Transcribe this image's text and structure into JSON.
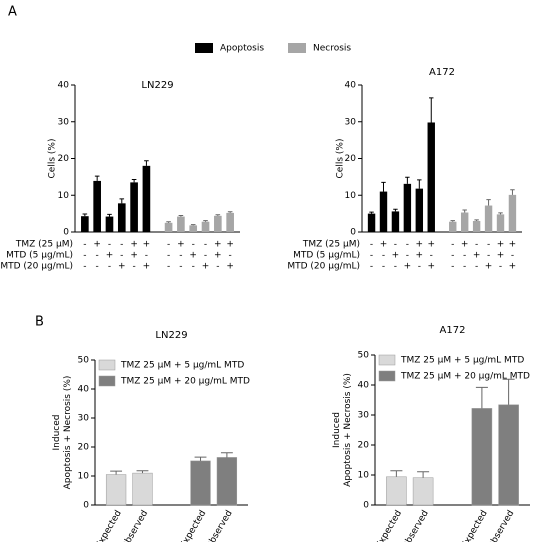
{
  "chart_data": [
    {
      "type": "bar",
      "panel": "A",
      "title": "LN229",
      "ylabel": [
        "Cells (%)"
      ],
      "ylim": [
        0,
        40
      ],
      "yticks": [
        0,
        10,
        20,
        30,
        40
      ],
      "series": [
        {
          "name": "Apoptosis",
          "color": "#000000",
          "values": [
            4.3,
            13.9,
            4.2,
            7.8,
            13.5,
            18.0
          ],
          "errors": [
            0.6,
            1.3,
            0.6,
            1.2,
            0.8,
            1.4
          ]
        },
        {
          "name": "Necrosis",
          "color": "#a6a6a6",
          "values": [
            2.5,
            4.2,
            1.8,
            2.8,
            4.4,
            5.2
          ],
          "errors": [
            0.3,
            0.3,
            0.2,
            0.3,
            0.3,
            0.3
          ]
        }
      ],
      "row_labels": [
        "TMZ (25 µM)",
        "MTD  (5 µg/mL)",
        "MTD (20 µg/mL)"
      ],
      "signs": [
        [
          "-",
          "+",
          "-",
          "-",
          "+",
          "+",
          "-",
          "+",
          "-",
          "-",
          "+",
          "+"
        ],
        [
          "-",
          "-",
          "+",
          "-",
          "+",
          "-",
          "-",
          "-",
          "+",
          "-",
          "+",
          "-"
        ],
        [
          "-",
          "-",
          "-",
          "+",
          "-",
          "+",
          "-",
          "-",
          "-",
          "+",
          "-",
          "+"
        ]
      ]
    },
    {
      "type": "bar",
      "title": "A172",
      "ylabel": [
        "Cells (%)"
      ],
      "ylim": [
        0,
        40
      ],
      "yticks": [
        0,
        10,
        20,
        30,
        40
      ],
      "series": [
        {
          "color": "#000000",
          "values": [
            5.0,
            11.0,
            5.6,
            13.1,
            11.8,
            29.8
          ],
          "errors": [
            0.4,
            2.5,
            0.6,
            1.8,
            2.4,
            6.7
          ]
        },
        {
          "color": "#a6a6a6",
          "values": [
            2.8,
            5.3,
            3.0,
            7.2,
            4.8,
            10.1
          ],
          "errors": [
            0.3,
            0.7,
            0.3,
            1.6,
            0.4,
            1.4
          ]
        }
      ],
      "row_labels": [
        "TMZ (25 µM)",
        "MTD  (5 µg/mL)",
        "MTD (20 µg/mL)"
      ],
      "signs": [
        [
          "-",
          "+",
          "-",
          "-",
          "+",
          "+",
          "-",
          "+",
          "-",
          "-",
          "+",
          "+"
        ],
        [
          "-",
          "-",
          "+",
          "-",
          "+",
          "-",
          "-",
          "-",
          "+",
          "-",
          "+",
          "-"
        ],
        [
          "-",
          "-",
          "-",
          "+",
          "-",
          "+",
          "-",
          "-",
          "-",
          "+",
          "-",
          "+"
        ]
      ]
    },
    {
      "type": "bar",
      "panel": "B",
      "title": "LN229",
      "ylabel": [
        "Induced",
        "Apoptosis + Necrosis (%)"
      ],
      "ylim": [
        0,
        50
      ],
      "yticks": [
        0,
        10,
        20,
        30,
        40,
        50
      ],
      "categories": [
        "Expected",
        "Observed",
        "Expected",
        "Observed"
      ],
      "series": [
        {
          "name": "TMZ 25 µM + 5 µg/mL MTD",
          "color": "#d9d9d9",
          "values": [
            10.5,
            11.0,
            null,
            null
          ],
          "errors": [
            1.2,
            0.8,
            null,
            null
          ]
        },
        {
          "name": "TMZ 25 µM + 20 µg/mL MTD",
          "color": "#7f7f7f",
          "values": [
            null,
            null,
            15.2,
            16.4
          ],
          "errors": [
            null,
            null,
            1.3,
            1.6
          ]
        }
      ]
    },
    {
      "type": "bar",
      "title": "A172",
      "ylabel": [
        "Induced",
        "Apoptosis + Necrosis (%)"
      ],
      "ylim": [
        0,
        50
      ],
      "yticks": [
        0,
        10,
        20,
        30,
        40,
        50
      ],
      "categories": [
        "Expected",
        "Observed",
        "Expected",
        "Observed"
      ],
      "series": [
        {
          "name": "TMZ 25 µM + 5 µg/mL MTD",
          "color": "#d9d9d9",
          "values": [
            9.4,
            9.1,
            null,
            null
          ],
          "errors": [
            2.0,
            2.0,
            null,
            null
          ]
        },
        {
          "name": "TMZ 25 µM + 20 µg/mL MTD",
          "color": "#7f7f7f",
          "values": [
            null,
            null,
            32.2,
            33.4
          ],
          "errors": [
            null,
            null,
            7.0,
            8.5
          ]
        }
      ]
    }
  ]
}
